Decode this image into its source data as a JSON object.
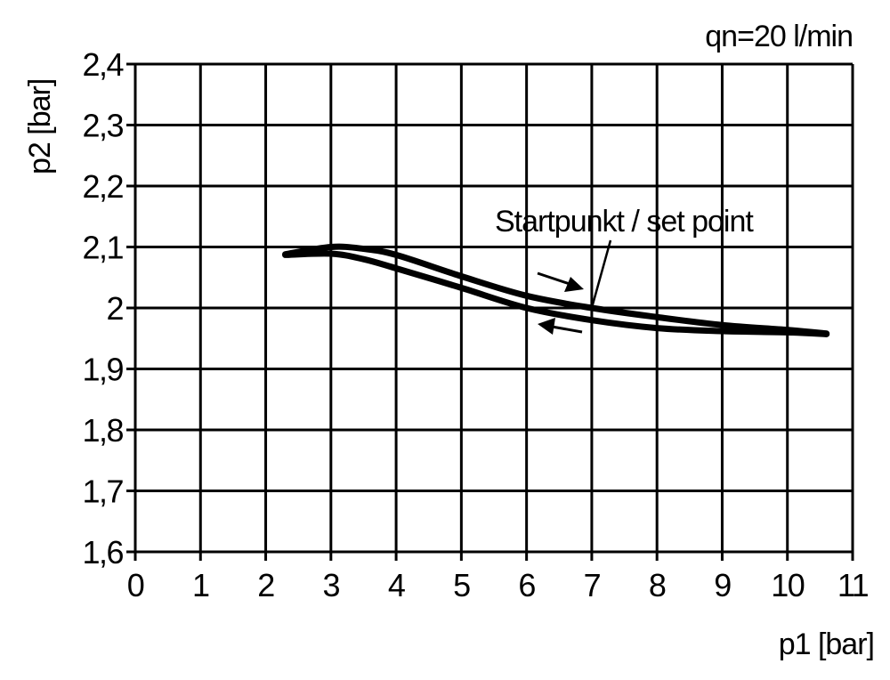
{
  "chart_data": {
    "type": "line",
    "title": "",
    "annotation_top_right": "qn=20 l/min",
    "xlabel": "p1 [bar]",
    "ylabel": "p2 [bar]",
    "xlim": [
      0,
      11
    ],
    "ylim": [
      1.6,
      2.4
    ],
    "grid": true,
    "x_ticks": [
      "0",
      "1",
      "2",
      "3",
      "4",
      "5",
      "6",
      "7",
      "8",
      "9",
      "10",
      "11"
    ],
    "y_ticks": [
      "1,6",
      "1,7",
      "1,8",
      "1,9",
      "2",
      "2,1",
      "2,2",
      "2,3",
      "2,4"
    ],
    "setpoint_label": "Startpunkt / set point",
    "setpoint": {
      "x": 7,
      "y": 2.0
    },
    "series": [
      {
        "x": [
          2.3,
          3,
          3.5,
          4,
          5,
          6,
          7,
          8,
          9,
          10,
          10.6
        ],
        "y": [
          2.088,
          2.1,
          2.097,
          2.087,
          2.052,
          2.02,
          2.0,
          1.985,
          1.972,
          1.964,
          1.958
        ]
      },
      {
        "x": [
          2.3,
          3,
          3.5,
          4,
          5,
          6,
          7,
          8,
          9,
          10,
          10.6
        ],
        "y": [
          2.087,
          2.089,
          2.08,
          2.065,
          2.033,
          2.0,
          1.98,
          1.967,
          1.962,
          1.96,
          1.957
        ]
      }
    ],
    "line_color": "#000000"
  }
}
